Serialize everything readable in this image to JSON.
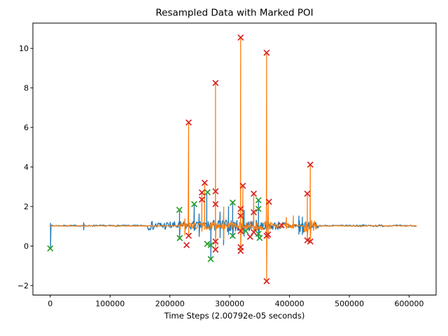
{
  "chart_data": {
    "type": "line",
    "title": "Resampled Data with Marked POI",
    "xlabel": "Time Steps (2.00792e-05 seconds)",
    "ylabel": "",
    "xlim": [
      -29000,
      645000
    ],
    "ylim": [
      -2.48,
      11.28
    ],
    "xticks": [
      0,
      100000,
      200000,
      300000,
      400000,
      500000,
      600000
    ],
    "yticks": [
      -2,
      0,
      2,
      4,
      6,
      8,
      10
    ],
    "grid": false,
    "legend_position": "none",
    "axis_color": "#000000",
    "series": [
      {
        "name": "signal-resampled-blue",
        "color": "#1f77b4",
        "baseline": 1.03,
        "x_start": 0,
        "x_end": 613000,
        "noise_regions": [
          [
            0,
            613000,
            0.035
          ],
          [
            161000,
            255000,
            0.22
          ],
          [
            255000,
            310000,
            0.3
          ],
          [
            310000,
            360000,
            0.28
          ],
          [
            360000,
            400000,
            0.22
          ],
          [
            400000,
            414000,
            0.1
          ],
          [
            414000,
            424000,
            0.4
          ],
          [
            424000,
            448000,
            0.18
          ],
          [
            500000,
            560000,
            0.05
          ]
        ],
        "spikes": [
          [
            500,
            1.15,
            -0.13
          ],
          [
            56000,
            1.18,
            0.82
          ],
          [
            216200,
            1.86,
            0.35
          ],
          [
            240700,
            2.12,
            0.78
          ],
          [
            248900,
            1.62,
            0.48
          ],
          [
            261700,
            2.65,
            0.88
          ],
          [
            268500,
            1.15,
            -0.68
          ],
          [
            283900,
            1.72,
            0.42
          ],
          [
            289700,
            1.32,
            0.06
          ],
          [
            298000,
            2.0,
            0.58
          ],
          [
            305000,
            2.24,
            0.45
          ],
          [
            324000,
            1.82,
            0.5
          ],
          [
            348100,
            2.32,
            0.35
          ],
          [
            415700,
            1.52,
            0.6
          ],
          [
            421500,
            1.46,
            0.58
          ]
        ]
      },
      {
        "name": "signal-resampled-orange",
        "color": "#ff7f0e",
        "baseline": 1.02,
        "x_start": 0,
        "x_end": 613000,
        "noise_regions": [
          [
            0,
            613000,
            0.018
          ],
          [
            215000,
            260000,
            0.17
          ],
          [
            260000,
            330000,
            0.2
          ],
          [
            330000,
            372000,
            0.22
          ],
          [
            372000,
            412000,
            0.12
          ],
          [
            424000,
            446000,
            0.3
          ]
        ],
        "spikes": [
          [
            225000,
            1.38,
            0.56
          ],
          [
            231400,
            6.25,
            0.5
          ],
          [
            253500,
            2.71,
            0.74
          ],
          [
            258200,
            3.2,
            0.84
          ],
          [
            276300,
            8.25,
            -0.18
          ],
          [
            290000,
            1.98,
            0.32
          ],
          [
            318300,
            10.55,
            -0.25
          ],
          [
            322000,
            3.05,
            0.6
          ],
          [
            340200,
            2.65,
            0.7
          ],
          [
            361700,
            9.78,
            -1.78
          ],
          [
            364500,
            2.3,
            0.5
          ],
          [
            394700,
            1.45,
            0.88
          ],
          [
            406400,
            1.53,
            0.9
          ],
          [
            429700,
            2.65,
            0.29
          ],
          [
            434700,
            4.12,
            0.23
          ]
        ]
      }
    ],
    "markers": [
      {
        "name": "poi-secondary-green",
        "shape": "x",
        "color": "#2ca02c",
        "points": [
          [
            0,
            -0.12
          ],
          [
            215800,
            1.83
          ],
          [
            216500,
            0.4
          ],
          [
            240700,
            2.12
          ],
          [
            262900,
            2.72
          ],
          [
            262500,
            0.11
          ],
          [
            268300,
            0.05
          ],
          [
            268300,
            -0.66
          ],
          [
            305000,
            2.2
          ],
          [
            305000,
            0.52
          ],
          [
            326700,
            0.76
          ],
          [
            348100,
            2.32
          ],
          [
            348100,
            1.88
          ],
          [
            348100,
            0.62
          ],
          [
            350000,
            0.41
          ]
        ]
      },
      {
        "name": "poi-marked-red",
        "shape": "x",
        "color": "#d62728",
        "points": [
          [
            231400,
            6.25
          ],
          [
            231400,
            0.52
          ],
          [
            227900,
            0.05
          ],
          [
            253500,
            2.71
          ],
          [
            253500,
            2.35
          ],
          [
            258200,
            3.2
          ],
          [
            276300,
            8.25
          ],
          [
            276300,
            2.77
          ],
          [
            276300,
            2.12
          ],
          [
            276300,
            0.23
          ],
          [
            276300,
            -0.18
          ],
          [
            318300,
            10.55
          ],
          [
            322000,
            3.05
          ],
          [
            318300,
            1.88
          ],
          [
            318300,
            1.53
          ],
          [
            318300,
            0.76
          ],
          [
            318300,
            -0.06
          ],
          [
            318300,
            -0.25
          ],
          [
            334100,
            0.47
          ],
          [
            340200,
            2.65
          ],
          [
            340200,
            1.71
          ],
          [
            340200,
            0.7
          ],
          [
            361700,
            9.78
          ],
          [
            365600,
            2.24
          ],
          [
            361700,
            0.52
          ],
          [
            361700,
            -1.78
          ],
          [
            364000,
            0.58
          ],
          [
            386600,
            1.05
          ],
          [
            429700,
            2.65
          ],
          [
            434700,
            4.12
          ],
          [
            429700,
            0.29
          ],
          [
            434700,
            0.23
          ]
        ]
      }
    ]
  }
}
